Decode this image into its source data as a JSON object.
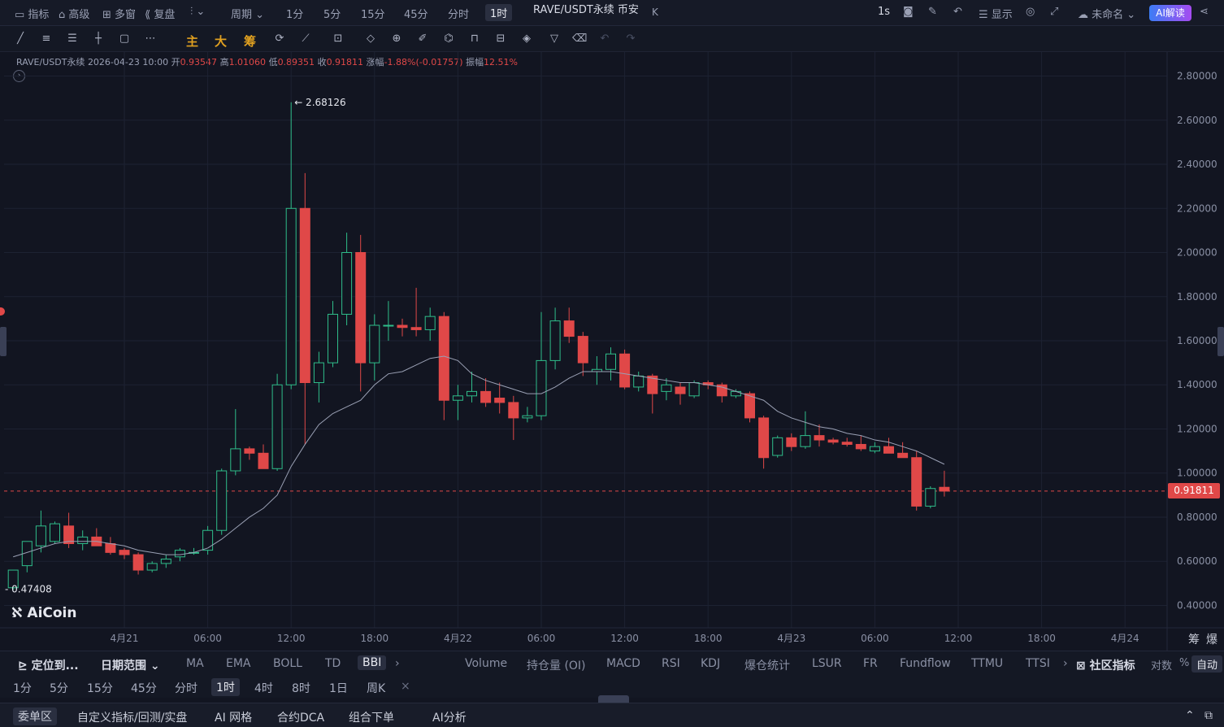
{
  "topbar": {
    "indicators": "指标",
    "advanced": "高级",
    "multi_window": "多窗",
    "replay": "复盘",
    "period": "周期",
    "periods": [
      "1分",
      "5分",
      "15分",
      "45分",
      "分时",
      "1时"
    ],
    "active_period": "1时",
    "title": "RAVE/USDT永续 币安",
    "title_suffix": "K",
    "refresh": "1s",
    "display": "显示",
    "unnamed": "未命名",
    "ai_read": "AI解读"
  },
  "drawbar": {
    "main": "主",
    "large": "大",
    "chips": "筹"
  },
  "ohlc": {
    "symbol": "RAVE/USDT永续",
    "datetime": "2026-04-23 10:00",
    "open_label": "开",
    "open": "0.93547",
    "high_label": "高",
    "high": "1.01060",
    "low_label": "低",
    "low": "0.89351",
    "close_label": "收",
    "close": "0.91811",
    "change_label": "涨幅",
    "change": "-1.88%(-0.01757)",
    "amp_label": "振幅",
    "amp": "12.51%"
  },
  "chart_data": {
    "type": "candlestick",
    "timeframe": "1h",
    "ylim": [
      0.35,
      2.85
    ],
    "y_ticks": [
      "2.80000",
      "2.60000",
      "2.40000",
      "2.20000",
      "2.00000",
      "1.80000",
      "1.60000",
      "1.40000",
      "1.20000",
      "1.00000",
      "0.80000",
      "0.60000",
      "0.40000"
    ],
    "y_tick_values": [
      2.8,
      2.6,
      2.4,
      2.2,
      2.0,
      1.8,
      1.6,
      1.4,
      1.2,
      1.0,
      0.8,
      0.6,
      0.4
    ],
    "x_ticks": [
      "4月21",
      "06:00",
      "12:00",
      "18:00",
      "4月22",
      "06:00",
      "12:00",
      "18:00",
      "4月23",
      "06:00",
      "12:00",
      "18:00",
      "4月24"
    ],
    "x_tick_hours": [
      0,
      6,
      12,
      18,
      24,
      30,
      36,
      42,
      48,
      54,
      60,
      66,
      72
    ],
    "first_candle_hour": -8,
    "candles": [
      [
        0.48,
        0.56,
        0.47,
        0.56
      ],
      [
        0.58,
        0.69,
        0.55,
        0.69
      ],
      [
        0.67,
        0.83,
        0.64,
        0.76
      ],
      [
        0.69,
        0.78,
        0.68,
        0.77
      ],
      [
        0.76,
        0.82,
        0.66,
        0.68
      ],
      [
        0.68,
        0.74,
        0.65,
        0.71
      ],
      [
        0.71,
        0.75,
        0.67,
        0.67
      ],
      [
        0.68,
        0.71,
        0.63,
        0.64
      ],
      [
        0.65,
        0.66,
        0.61,
        0.63
      ],
      [
        0.63,
        0.64,
        0.54,
        0.56
      ],
      [
        0.56,
        0.6,
        0.55,
        0.59
      ],
      [
        0.59,
        0.63,
        0.57,
        0.61
      ],
      [
        0.62,
        0.66,
        0.6,
        0.65
      ],
      [
        0.64,
        0.66,
        0.63,
        0.64
      ],
      [
        0.65,
        0.76,
        0.63,
        0.74
      ],
      [
        0.74,
        1.02,
        0.72,
        1.01
      ],
      [
        1.01,
        1.29,
        0.99,
        1.11
      ],
      [
        1.11,
        1.12,
        1.06,
        1.09
      ],
      [
        1.09,
        1.13,
        1.02,
        1.02
      ],
      [
        1.02,
        1.45,
        1.01,
        1.4
      ],
      [
        1.4,
        2.68126,
        1.38,
        2.2
      ],
      [
        2.2,
        2.36,
        1.13,
        1.41
      ],
      [
        1.41,
        1.55,
        1.32,
        1.5
      ],
      [
        1.5,
        1.78,
        1.48,
        1.72
      ],
      [
        1.72,
        2.09,
        1.67,
        2.0
      ],
      [
        2.0,
        2.08,
        1.37,
        1.5
      ],
      [
        1.5,
        1.72,
        1.42,
        1.67
      ],
      [
        1.67,
        1.78,
        1.6,
        1.67
      ],
      [
        1.67,
        1.7,
        1.62,
        1.66
      ],
      [
        1.66,
        1.84,
        1.62,
        1.65
      ],
      [
        1.65,
        1.75,
        1.6,
        1.71
      ],
      [
        1.71,
        1.73,
        1.24,
        1.33
      ],
      [
        1.33,
        1.4,
        1.24,
        1.35
      ],
      [
        1.35,
        1.46,
        1.32,
        1.37
      ],
      [
        1.37,
        1.43,
        1.3,
        1.32
      ],
      [
        1.34,
        1.41,
        1.27,
        1.32
      ],
      [
        1.32,
        1.35,
        1.15,
        1.25
      ],
      [
        1.25,
        1.3,
        1.23,
        1.26
      ],
      [
        1.26,
        1.73,
        1.24,
        1.51
      ],
      [
        1.51,
        1.75,
        1.47,
        1.69
      ],
      [
        1.69,
        1.75,
        1.59,
        1.62
      ],
      [
        1.62,
        1.64,
        1.44,
        1.5
      ],
      [
        1.46,
        1.53,
        1.4,
        1.47
      ],
      [
        1.47,
        1.57,
        1.42,
        1.54
      ],
      [
        1.54,
        1.56,
        1.38,
        1.39
      ],
      [
        1.39,
        1.46,
        1.37,
        1.44
      ],
      [
        1.44,
        1.45,
        1.27,
        1.36
      ],
      [
        1.37,
        1.43,
        1.33,
        1.4
      ],
      [
        1.39,
        1.41,
        1.31,
        1.36
      ],
      [
        1.35,
        1.42,
        1.34,
        1.41
      ],
      [
        1.41,
        1.42,
        1.38,
        1.4
      ],
      [
        1.4,
        1.41,
        1.32,
        1.35
      ],
      [
        1.35,
        1.38,
        1.34,
        1.37
      ],
      [
        1.36,
        1.37,
        1.23,
        1.25
      ],
      [
        1.25,
        1.26,
        1.02,
        1.07
      ],
      [
        1.08,
        1.17,
        1.07,
        1.16
      ],
      [
        1.16,
        1.18,
        1.1,
        1.12
      ],
      [
        1.12,
        1.28,
        1.11,
        1.17
      ],
      [
        1.17,
        1.22,
        1.12,
        1.15
      ],
      [
        1.15,
        1.16,
        1.13,
        1.14
      ],
      [
        1.14,
        1.16,
        1.12,
        1.13
      ],
      [
        1.13,
        1.17,
        1.1,
        1.11
      ],
      [
        1.1,
        1.14,
        1.09,
        1.12
      ],
      [
        1.12,
        1.16,
        1.09,
        1.09
      ],
      [
        1.09,
        1.14,
        1.07,
        1.07
      ],
      [
        1.07,
        1.1,
        0.83,
        0.85
      ],
      [
        0.85,
        0.94,
        0.84,
        0.93
      ],
      [
        0.93547,
        1.0106,
        0.89351,
        0.91811
      ]
    ],
    "bbi": [
      0.62,
      0.64,
      0.66,
      0.68,
      0.69,
      0.69,
      0.69,
      0.68,
      0.67,
      0.65,
      0.64,
      0.63,
      0.63,
      0.64,
      0.66,
      0.7,
      0.75,
      0.8,
      0.84,
      0.9,
      1.03,
      1.13,
      1.22,
      1.27,
      1.3,
      1.33,
      1.4,
      1.45,
      1.46,
      1.49,
      1.52,
      1.53,
      1.51,
      1.45,
      1.42,
      1.4,
      1.38,
      1.36,
      1.36,
      1.39,
      1.43,
      1.46,
      1.46,
      1.46,
      1.45,
      1.44,
      1.43,
      1.42,
      1.41,
      1.41,
      1.4,
      1.39,
      1.37,
      1.35,
      1.33,
      1.28,
      1.25,
      1.23,
      1.21,
      1.2,
      1.18,
      1.17,
      1.15,
      1.14,
      1.12,
      1.1,
      1.07,
      1.04
    ],
    "max_label": "2.68126",
    "min_label": "0.47408",
    "last_price": "0.91811"
  },
  "logo": "AiCoin",
  "indicatorbar": {
    "locate": "定位到...",
    "date_range": "日期范围",
    "main_indicators": [
      "MA",
      "EMA",
      "BOLL",
      "TD",
      "BBI"
    ],
    "active_main": "BBI",
    "sub_indicators": [
      "Volume",
      "持仓量 (OI)",
      "MACD",
      "RSI",
      "KDJ",
      "爆仓统计",
      "LSUR",
      "FR",
      "Fundflow",
      "TTMU",
      "TTSI"
    ],
    "community": "社区指标",
    "log": "对数",
    "percent": "%",
    "auto": "自动"
  },
  "periodbar": {
    "periods": [
      "1分",
      "5分",
      "15分",
      "45分",
      "分时",
      "1时",
      "4时",
      "8时",
      "1日",
      "周K"
    ],
    "active": "1时",
    "close_x": "×"
  },
  "sidebar_right": {
    "chips": "筹",
    "liq": "爆"
  },
  "bottombar": {
    "tabs": [
      "委单区",
      "自定义指标/回测/实盘",
      "AI 网格",
      "合约DCA",
      "组合下单",
      "AI分析"
    ],
    "active": "委单区"
  },
  "colors": {
    "up": "#2fbd8a",
    "down": "#e04848",
    "bbi": "#9aa0b4",
    "bg": "#121521",
    "grid": "#1d2232"
  }
}
